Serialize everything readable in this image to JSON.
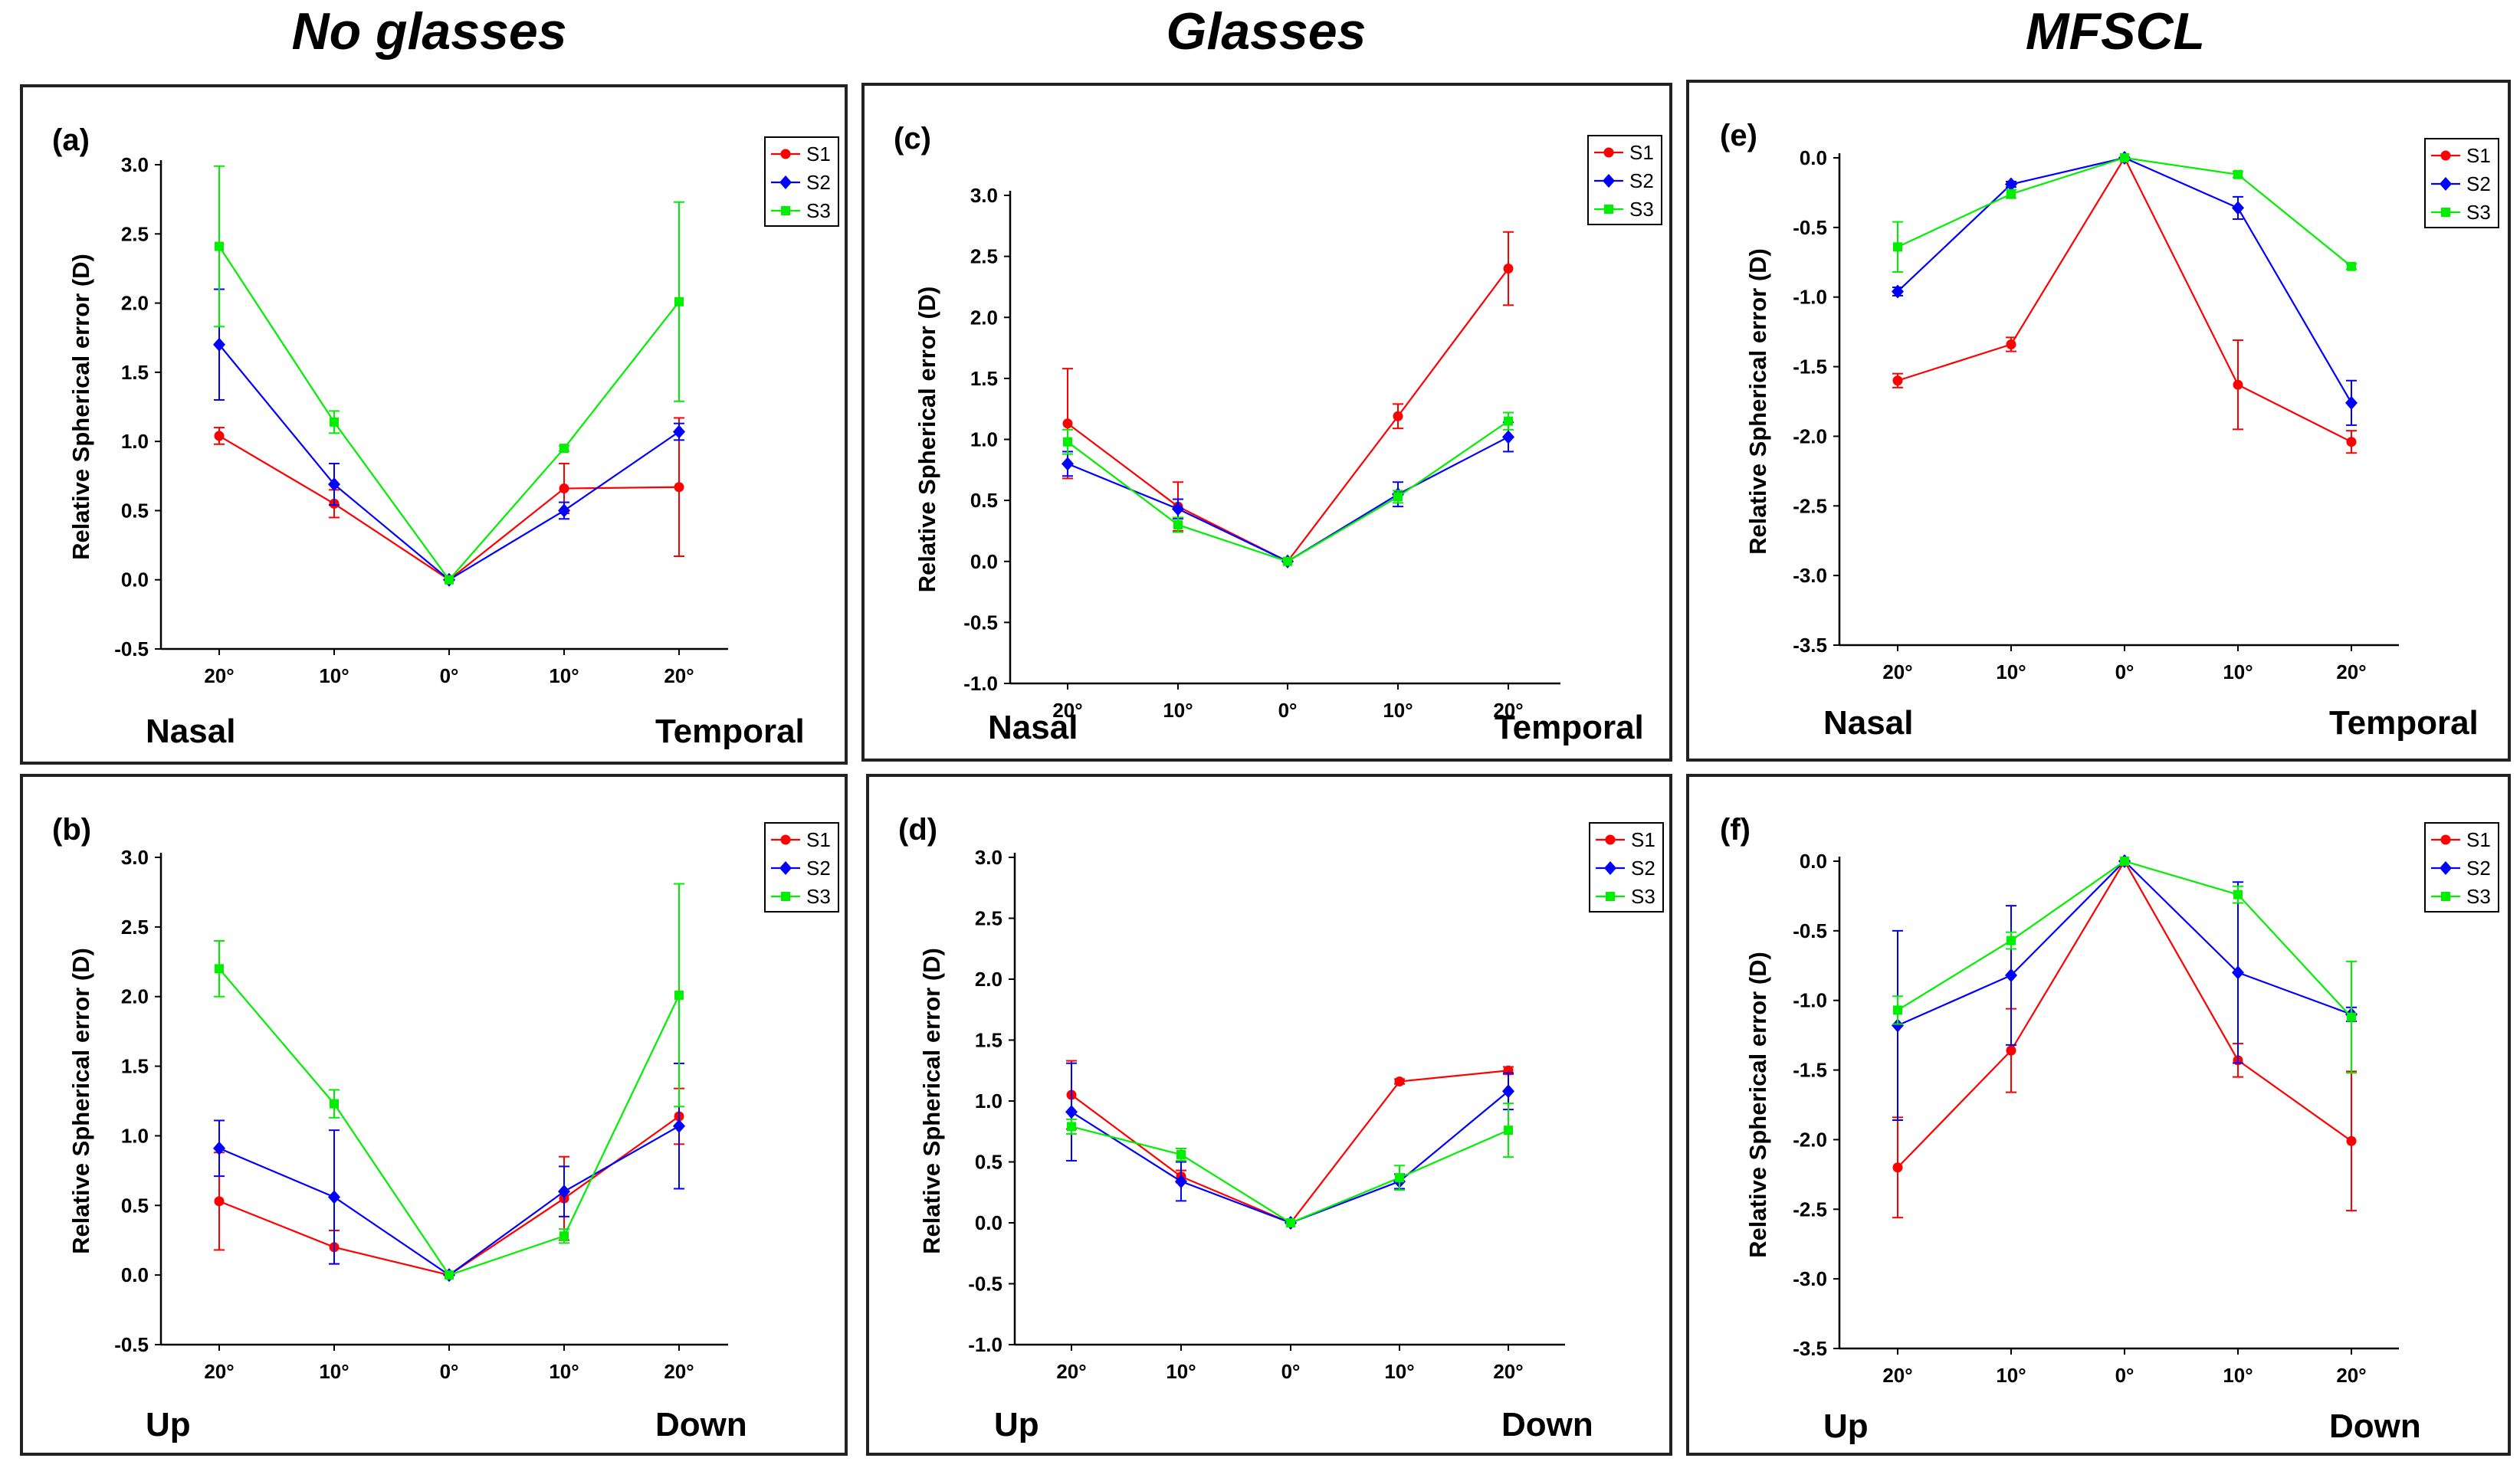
{
  "titles": [
    "No glasses",
    "Glasses",
    "MFSCL"
  ],
  "legend": [
    "S1",
    "S2",
    "S3"
  ],
  "colors": {
    "S1": "#ff0000",
    "S2": "#0000ff",
    "S3": "#00ee00",
    "axis": "#000000"
  },
  "chart_data": [
    {
      "id": "a",
      "type": "line",
      "label": "(a)",
      "title": "No glasses",
      "categories": [
        "20°",
        "10°",
        "0°",
        "10°",
        "20°"
      ],
      "side_labels": [
        "Nasal",
        "Temporal"
      ],
      "ylabel": "Relative Spherical error (D)",
      "ylim": [
        -0.5,
        3.0
      ],
      "yticks": [
        -0.5,
        0.0,
        0.5,
        1.0,
        1.5,
        2.0,
        2.5,
        3.0
      ],
      "series": [
        {
          "name": "S1",
          "values": [
            1.04,
            0.55,
            0.0,
            0.66,
            0.67
          ],
          "errors": [
            0.06,
            0.1,
            0.0,
            0.18,
            0.5
          ]
        },
        {
          "name": "S2",
          "values": [
            1.7,
            0.69,
            0.0,
            0.5,
            1.07
          ],
          "errors": [
            0.4,
            0.15,
            0.0,
            0.06,
            0.06
          ]
        },
        {
          "name": "S3",
          "values": [
            2.41,
            1.14,
            0.0,
            0.95,
            2.01
          ],
          "errors": [
            0.58,
            0.08,
            0.0,
            0.02,
            0.72
          ]
        }
      ]
    },
    {
      "id": "c",
      "type": "line",
      "label": "(c)",
      "title": "Glasses",
      "categories": [
        "20°",
        "10°",
        "0°",
        "10°",
        "20°"
      ],
      "side_labels": [
        "Nasal",
        "Temporal"
      ],
      "ylabel": "Relative Spherical error (D)",
      "ylim": [
        -1.0,
        3.0
      ],
      "yticks": [
        -1.0,
        -0.5,
        0.0,
        0.5,
        1.0,
        1.5,
        2.0,
        2.5,
        3.0
      ],
      "series": [
        {
          "name": "S1",
          "values": [
            1.13,
            0.45,
            0.0,
            1.19,
            2.4
          ],
          "errors": [
            0.45,
            0.2,
            0.0,
            0.1,
            0.3
          ]
        },
        {
          "name": "S2",
          "values": [
            0.8,
            0.43,
            0.0,
            0.55,
            1.02
          ],
          "errors": [
            0.1,
            0.08,
            0.0,
            0.1,
            0.12
          ]
        },
        {
          "name": "S3",
          "values": [
            0.98,
            0.3,
            0.0,
            0.53,
            1.15
          ],
          "errors": [
            0.1,
            0.06,
            0.0,
            0.05,
            0.07
          ]
        }
      ]
    },
    {
      "id": "e",
      "type": "line",
      "label": "(e)",
      "title": "MFSCL",
      "categories": [
        "20°",
        "10°",
        "0°",
        "10°",
        "20°"
      ],
      "side_labels": [
        "Nasal",
        "Temporal"
      ],
      "ylabel": "Relative Spherical error (D)",
      "ylim": [
        -3.5,
        0.0
      ],
      "yticks": [
        -3.5,
        -3.0,
        -2.5,
        -2.0,
        -1.5,
        -1.0,
        -0.5,
        0.0
      ],
      "series": [
        {
          "name": "S1",
          "values": [
            -1.6,
            -1.34,
            0.0,
            -1.63,
            -2.04
          ],
          "errors": [
            0.05,
            0.05,
            0.0,
            0.32,
            0.08
          ]
        },
        {
          "name": "S2",
          "values": [
            -0.96,
            -0.19,
            0.0,
            -0.36,
            -1.76
          ],
          "errors": [
            0.03,
            0.02,
            0.0,
            0.08,
            0.16
          ]
        },
        {
          "name": "S3",
          "values": [
            -0.64,
            -0.26,
            0.0,
            -0.12,
            -0.78
          ],
          "errors": [
            0.18,
            0.03,
            0.0,
            0.02,
            0.02
          ]
        }
      ]
    },
    {
      "id": "b",
      "type": "line",
      "label": "(b)",
      "title": "No glasses",
      "categories": [
        "20°",
        "10°",
        "0°",
        "10°",
        "20°"
      ],
      "side_labels": [
        "Up",
        "Down"
      ],
      "ylabel": "Relative Spherical error (D)",
      "ylim": [
        -0.5,
        3.0
      ],
      "yticks": [
        -0.5,
        0.0,
        0.5,
        1.0,
        1.5,
        2.0,
        2.5,
        3.0
      ],
      "series": [
        {
          "name": "S1",
          "values": [
            0.53,
            0.2,
            0.0,
            0.55,
            1.14
          ],
          "errors": [
            0.35,
            0.12,
            0.0,
            0.3,
            0.2
          ]
        },
        {
          "name": "S2",
          "values": [
            0.91,
            0.56,
            0.0,
            0.6,
            1.07
          ],
          "errors": [
            0.2,
            0.48,
            0.0,
            0.18,
            0.45
          ]
        },
        {
          "name": "S3",
          "values": [
            2.2,
            1.23,
            0.0,
            0.28,
            2.01
          ],
          "errors": [
            0.2,
            0.1,
            0.0,
            0.05,
            0.8
          ]
        }
      ]
    },
    {
      "id": "d",
      "type": "line",
      "label": "(d)",
      "title": "Glasses",
      "categories": [
        "20°",
        "10°",
        "0°",
        "10°",
        "20°"
      ],
      "side_labels": [
        "Up",
        "Down"
      ],
      "ylabel": "Relative Spherical error (D)",
      "ylim": [
        -1.0,
        3.0
      ],
      "yticks": [
        -1.0,
        -0.5,
        0.0,
        0.5,
        1.0,
        1.5,
        2.0,
        2.5,
        3.0
      ],
      "series": [
        {
          "name": "S1",
          "values": [
            1.05,
            0.38,
            0.0,
            1.16,
            1.25
          ],
          "errors": [
            0.28,
            0.05,
            0.0,
            0.02,
            0.03
          ]
        },
        {
          "name": "S2",
          "values": [
            0.91,
            0.34,
            0.0,
            0.34,
            1.08
          ],
          "errors": [
            0.4,
            0.16,
            0.0,
            0.06,
            0.15
          ]
        },
        {
          "name": "S3",
          "values": [
            0.79,
            0.56,
            0.0,
            0.37,
            0.76
          ],
          "errors": [
            0.06,
            0.05,
            0.0,
            0.1,
            0.22
          ]
        }
      ]
    },
    {
      "id": "f",
      "type": "line",
      "label": "(f)",
      "title": "MFSCL",
      "categories": [
        "20°",
        "10°",
        "0°",
        "10°",
        "20°"
      ],
      "side_labels": [
        "Up",
        "Down"
      ],
      "ylabel": "Relative Spherical error (D)",
      "ylim": [
        -3.5,
        0.0
      ],
      "yticks": [
        -3.5,
        -3.0,
        -2.5,
        -2.0,
        -1.5,
        -1.0,
        -0.5,
        0.0
      ],
      "series": [
        {
          "name": "S1",
          "values": [
            -2.2,
            -1.36,
            0.0,
            -1.43,
            -2.01
          ],
          "errors": [
            0.36,
            0.3,
            0.0,
            0.12,
            0.5
          ]
        },
        {
          "name": "S2",
          "values": [
            -1.18,
            -0.82,
            0.0,
            -0.8,
            -1.1
          ],
          "errors": [
            0.68,
            0.5,
            0.0,
            0.65,
            0.05
          ]
        },
        {
          "name": "S3",
          "values": [
            -1.07,
            -0.57,
            0.0,
            -0.24,
            -1.12
          ],
          "errors": [
            0.1,
            0.06,
            0.0,
            0.06,
            0.4
          ]
        }
      ]
    }
  ]
}
